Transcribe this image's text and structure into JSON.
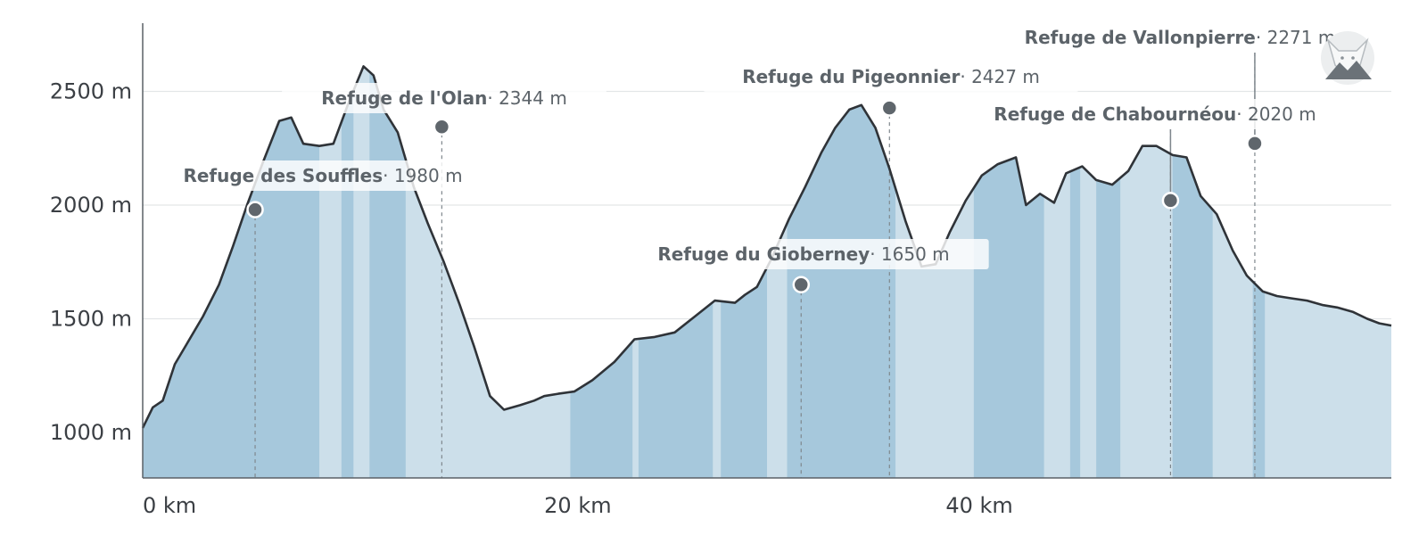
{
  "chart_data": {
    "type": "area",
    "title": "",
    "xlabel": "",
    "ylabel": "",
    "x_unit": "km",
    "y_unit": "m",
    "xlim": [
      0,
      62.2
    ],
    "ylim": [
      800,
      2800
    ],
    "x_ticks": [
      {
        "value": 0,
        "label": "0 km"
      },
      {
        "value": 20,
        "label": "20 km"
      },
      {
        "value": 40,
        "label": "40 km"
      }
    ],
    "y_ticks": [
      {
        "value": 1000,
        "label": "1000 m"
      },
      {
        "value": 1500,
        "label": "1500 m"
      },
      {
        "value": 2000,
        "label": "2000 m"
      },
      {
        "value": 2500,
        "label": "2500 m"
      }
    ],
    "grid": "horizontal",
    "colors": {
      "area_dark": "#a6c8dc",
      "area_light": "#ccdfea",
      "line": "#2f3338",
      "marker": "#5f666c",
      "grid": "#e3e6e8"
    },
    "profile": {
      "x": [
        0,
        0.5,
        1,
        1.6,
        2.2,
        3,
        3.8,
        4.5,
        5.2,
        6,
        6.8,
        7.4,
        8,
        8.8,
        9.5,
        10.3,
        11,
        11.5,
        12,
        12.7,
        13.5,
        14.2,
        15,
        15.8,
        16.5,
        17.3,
        18,
        18.8,
        19.5,
        20,
        20.7,
        21.5,
        22.4,
        23.5,
        24.5,
        25.5,
        26.5,
        27.5,
        28.5,
        29.5,
        30,
        30.6,
        31.3,
        32.2,
        33,
        33.8,
        34.5,
        35.2,
        35.8,
        36.5,
        37.2,
        38,
        38.8,
        39.5,
        40.2,
        41,
        41.8,
        42.6,
        43.5,
        44,
        44.7,
        45.4,
        46,
        46.8,
        47.5,
        48.3,
        49.1,
        49.8,
        50.5,
        51.3,
        52,
        52.7,
        53.5,
        54.3,
        55,
        55.8,
        56.5,
        57.2,
        58,
        58.8,
        59.5,
        60.3,
        61,
        61.6,
        62.2
      ],
      "y": [
        1020,
        1110,
        1140,
        1300,
        1390,
        1510,
        1650,
        1820,
        2000,
        2190,
        2370,
        2385,
        2270,
        2260,
        2270,
        2460,
        2610,
        2570,
        2420,
        2320,
        2080,
        1920,
        1750,
        1560,
        1380,
        1160,
        1100,
        1120,
        1140,
        1160,
        1170,
        1180,
        1230,
        1310,
        1410,
        1420,
        1440,
        1510,
        1580,
        1570,
        1605,
        1640,
        1760,
        1940,
        2080,
        2230,
        2340,
        2420,
        2440,
        2340,
        2160,
        1930,
        1730,
        1740,
        1880,
        2020,
        2130,
        2180,
        2210,
        2000,
        2050,
        2010,
        2140,
        2170,
        2110,
        2090,
        2150,
        2260,
        2260,
        2220,
        2210,
        2040,
        1960,
        1800,
        1690,
        1620,
        1600,
        1590,
        1580,
        1560,
        1550,
        1530,
        1500,
        1480,
        1470
      ],
      "shading_bands": [
        {
          "from": 0,
          "to": 8.8,
          "shade": "dark"
        },
        {
          "from": 8.8,
          "to": 9.9,
          "shade": "light"
        },
        {
          "from": 9.9,
          "to": 10.5,
          "shade": "dark"
        },
        {
          "from": 10.5,
          "to": 11.3,
          "shade": "light"
        },
        {
          "from": 11.3,
          "to": 13.1,
          "shade": "dark"
        },
        {
          "from": 13.1,
          "to": 21.3,
          "shade": "light"
        },
        {
          "from": 21.3,
          "to": 24.4,
          "shade": "dark"
        },
        {
          "from": 24.4,
          "to": 24.7,
          "shade": "light"
        },
        {
          "from": 24.7,
          "to": 28.4,
          "shade": "dark"
        },
        {
          "from": 28.4,
          "to": 28.8,
          "shade": "light"
        },
        {
          "from": 28.8,
          "to": 31.1,
          "shade": "dark"
        },
        {
          "from": 31.1,
          "to": 32.1,
          "shade": "light"
        },
        {
          "from": 32.1,
          "to": 37.5,
          "shade": "dark"
        },
        {
          "from": 37.5,
          "to": 41.4,
          "shade": "light"
        },
        {
          "from": 41.4,
          "to": 44.9,
          "shade": "dark"
        },
        {
          "from": 44.9,
          "to": 46.2,
          "shade": "light"
        },
        {
          "from": 46.2,
          "to": 46.7,
          "shade": "dark"
        },
        {
          "from": 46.7,
          "to": 47.5,
          "shade": "light"
        },
        {
          "from": 47.5,
          "to": 48.7,
          "shade": "dark"
        },
        {
          "from": 48.7,
          "to": 51.3,
          "shade": "light"
        },
        {
          "from": 51.3,
          "to": 53.3,
          "shade": "dark"
        },
        {
          "from": 53.3,
          "to": 55.3,
          "shade": "light"
        },
        {
          "from": 55.3,
          "to": 55.9,
          "shade": "dark"
        },
        {
          "from": 55.9,
          "to": 62.2,
          "shade": "light"
        }
      ]
    },
    "annotations": [
      {
        "name": "Refuge des Souffles",
        "value": "1980 m",
        "x": 5.6,
        "y": 1980
      },
      {
        "name": "Refuge de l'Olan",
        "value": "2344 m",
        "x": 14.9,
        "y": 2344
      },
      {
        "name": "Refuge du Gioberney",
        "value": "1650 m",
        "x": 32.8,
        "y": 1650
      },
      {
        "name": "Refuge du Pigeonnier",
        "value": "2427 m",
        "x": 37.2,
        "y": 2427
      },
      {
        "name": "Refuge de Chabournéou",
        "value": "2020 m",
        "x": 51.2,
        "y": 2020
      },
      {
        "name": "Refuge de Vallonpierre",
        "value": "2271 m",
        "x": 55.4,
        "y": 2271
      }
    ]
  }
}
